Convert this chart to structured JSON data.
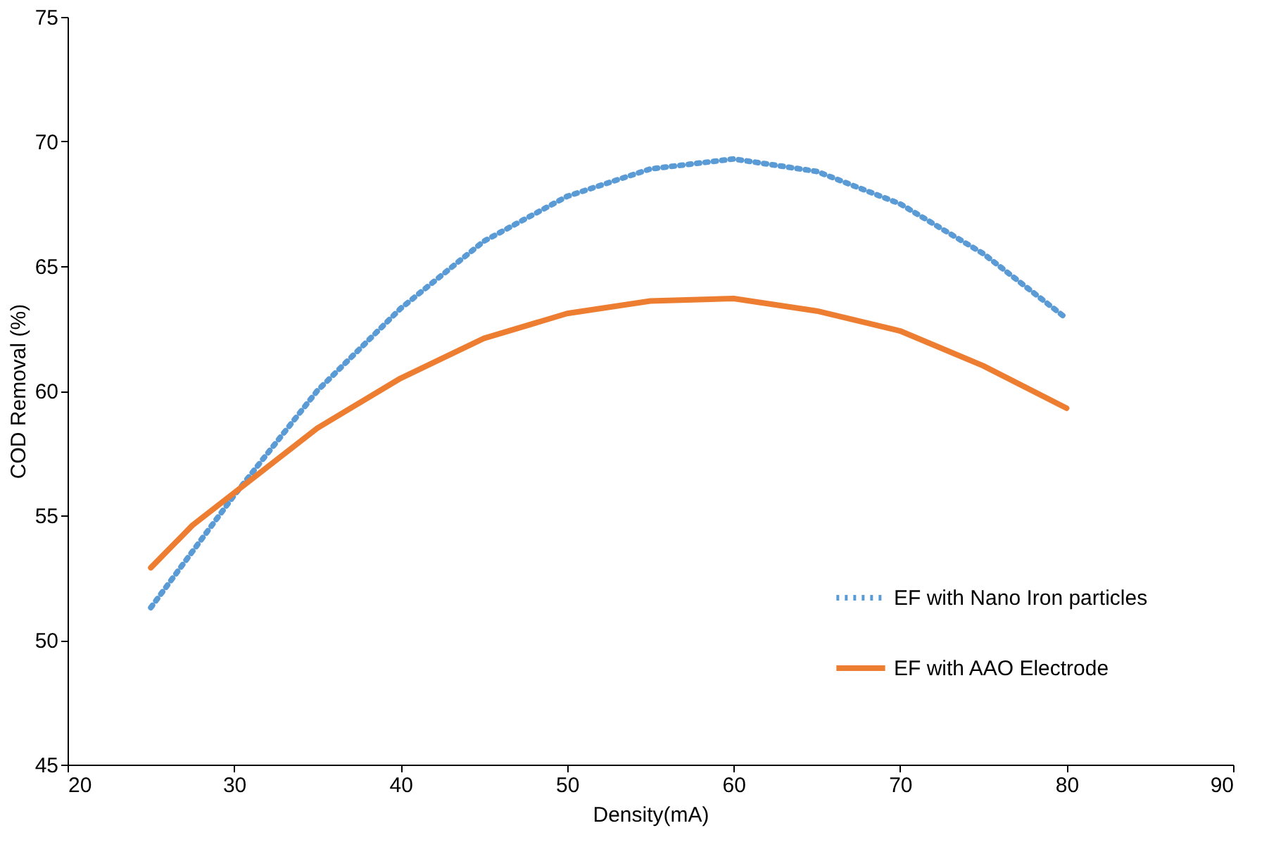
{
  "chart_data": {
    "type": "line",
    "xlabel": "Density(mA)",
    "ylabel": "COD Removal (%)",
    "xlim": [
      20,
      90
    ],
    "xticks": [
      20,
      30,
      40,
      50,
      60,
      70,
      80,
      90
    ],
    "ylim": [
      45,
      75
    ],
    "yticks": [
      45,
      50,
      55,
      60,
      65,
      70,
      75
    ],
    "grid": false,
    "legend": "bottom right",
    "series": [
      {
        "name": "EF with Nano Iron particles",
        "color": "#5b9bd5",
        "line_style": "dotted",
        "x": [
          25,
          30,
          35,
          40,
          45,
          50,
          55,
          60,
          65,
          70,
          75,
          80
        ],
        "values": [
          51.3,
          55.8,
          60.0,
          63.3,
          66.0,
          67.8,
          68.9,
          69.3,
          68.8,
          67.5,
          65.5,
          62.9
        ]
      },
      {
        "name": "EF with AAO Electrode",
        "color": "#ed7d31",
        "line_style": "solid",
        "x": [
          25,
          27.5,
          30,
          35,
          40,
          45,
          50,
          55,
          60,
          65,
          70,
          75,
          80
        ],
        "values": [
          52.9,
          54.6,
          55.9,
          58.5,
          60.5,
          62.1,
          63.1,
          63.6,
          63.7,
          63.2,
          62.4,
          61.0,
          59.3
        ]
      }
    ]
  }
}
